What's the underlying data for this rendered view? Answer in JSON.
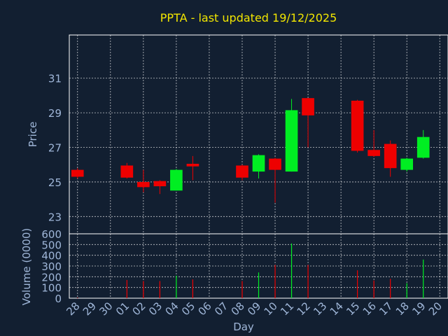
{
  "colors": {
    "background": "#121f31",
    "title": "#f2e600",
    "axis_text": "#9fb6d8",
    "grid": "#ffffff",
    "frame": "#ffffff",
    "up": "#00ee22",
    "down": "#ee0000"
  },
  "chart_data": [
    {
      "type": "candlestick",
      "title": "PPTA - last updated 19/12/2025",
      "ylabel": "Price",
      "ylim": [
        22.0,
        33.5
      ],
      "yticks": [
        23,
        25,
        27,
        29,
        31
      ],
      "grid": true,
      "categories": [
        "28",
        "29",
        "30",
        "01",
        "02",
        "03",
        "04",
        "05",
        "06",
        "07",
        "08",
        "09",
        "10",
        "11",
        "12",
        "13",
        "14",
        "15",
        "16",
        "17",
        "18",
        "19",
        "20"
      ],
      "series": [
        {
          "candles": [
            {
              "x": "28",
              "open": 25.7,
              "close": 25.3,
              "high": 25.8,
              "low": 25.2
            },
            {
              "x": "01",
              "open": 25.95,
              "close": 25.25,
              "high": 26.1,
              "low": 25.2
            },
            {
              "x": "02",
              "open": 25.0,
              "close": 24.7,
              "high": 25.7,
              "low": 24.4
            },
            {
              "x": "03",
              "open": 25.05,
              "close": 24.75,
              "high": 25.1,
              "low": 24.3
            },
            {
              "x": "04",
              "open": 24.5,
              "close": 25.7,
              "high": 25.75,
              "low": 24.5
            },
            {
              "x": "05",
              "open": 26.05,
              "close": 25.9,
              "high": 26.5,
              "low": 25.1
            },
            {
              "x": "08",
              "open": 25.95,
              "close": 25.25,
              "high": 26.0,
              "low": 25.1
            },
            {
              "x": "09",
              "open": 25.6,
              "close": 26.55,
              "high": 26.6,
              "low": 25.2
            },
            {
              "x": "10",
              "open": 26.35,
              "close": 25.7,
              "high": 26.4,
              "low": 23.8
            },
            {
              "x": "11",
              "open": 25.6,
              "close": 29.15,
              "high": 29.8,
              "low": 25.6
            },
            {
              "x": "12",
              "open": 29.85,
              "close": 28.85,
              "high": 29.85,
              "low": 27.0
            },
            {
              "x": "15",
              "open": 29.7,
              "close": 26.8,
              "high": 29.75,
              "low": 26.7
            },
            {
              "x": "16",
              "open": 26.85,
              "close": 26.5,
              "high": 28.0,
              "low": 26.45
            },
            {
              "x": "17",
              "open": 27.2,
              "close": 25.8,
              "high": 27.4,
              "low": 25.3
            },
            {
              "x": "18",
              "open": 25.7,
              "close": 26.35,
              "high": 26.4,
              "low": 25.6
            },
            {
              "x": "19",
              "open": 26.4,
              "close": 27.6,
              "high": 28.0,
              "low": 26.35
            }
          ]
        }
      ]
    },
    {
      "type": "bar",
      "ylabel": "Volume (0000)",
      "xlabel": "Day",
      "ylim": [
        0,
        600
      ],
      "yticks": [
        0,
        100,
        200,
        300,
        400,
        500,
        600
      ],
      "grid": true,
      "categories": [
        "28",
        "29",
        "30",
        "01",
        "02",
        "03",
        "04",
        "05",
        "06",
        "07",
        "08",
        "09",
        "10",
        "11",
        "12",
        "13",
        "14",
        "15",
        "16",
        "17",
        "18",
        "19",
        "20"
      ],
      "series": [
        {
          "values": [
            {
              "x": "28",
              "value": 5,
              "direction": "down"
            },
            {
              "x": "01",
              "value": 170,
              "direction": "down"
            },
            {
              "x": "02",
              "value": 160,
              "direction": "down"
            },
            {
              "x": "03",
              "value": 160,
              "direction": "down"
            },
            {
              "x": "04",
              "value": 210,
              "direction": "up"
            },
            {
              "x": "05",
              "value": 175,
              "direction": "down"
            },
            {
              "x": "08",
              "value": 160,
              "direction": "down"
            },
            {
              "x": "09",
              "value": 240,
              "direction": "up"
            },
            {
              "x": "10",
              "value": 310,
              "direction": "down"
            },
            {
              "x": "11",
              "value": 510,
              "direction": "up"
            },
            {
              "x": "12",
              "value": 310,
              "direction": "down"
            },
            {
              "x": "15",
              "value": 260,
              "direction": "down"
            },
            {
              "x": "16",
              "value": 165,
              "direction": "down"
            },
            {
              "x": "17",
              "value": 180,
              "direction": "down"
            },
            {
              "x": "18",
              "value": 140,
              "direction": "up"
            },
            {
              "x": "19",
              "value": 360,
              "direction": "up"
            }
          ]
        }
      ]
    }
  ]
}
